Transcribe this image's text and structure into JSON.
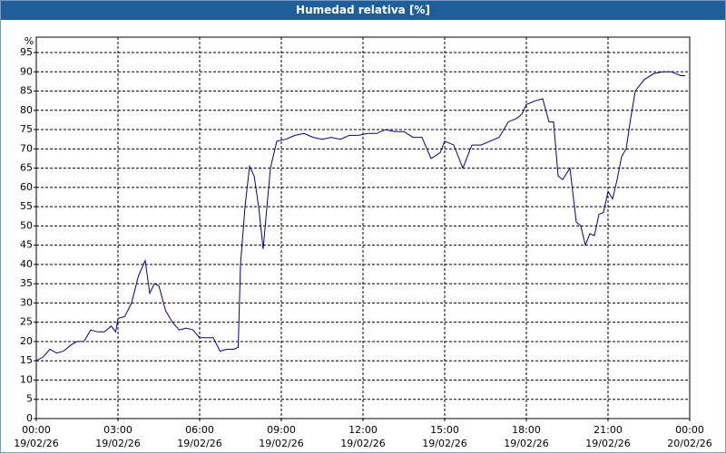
{
  "chart_data": {
    "type": "line",
    "title": "Humedad relativa [%]",
    "y_unit": "%",
    "x": [
      "19/02/26 00:00",
      "19/02/26 00:15",
      "19/02/26 00:30",
      "19/02/26 00:45",
      "19/02/26 01:00",
      "19/02/26 01:15",
      "19/02/26 01:30",
      "19/02/26 01:45",
      "19/02/26 02:00",
      "19/02/26 02:15",
      "19/02/26 02:30",
      "19/02/26 02:45",
      "19/02/26 02:55",
      "19/02/26 03:00",
      "19/02/26 03:15",
      "19/02/26 03:30",
      "19/02/26 03:45",
      "19/02/26 04:00",
      "19/02/26 04:10",
      "19/02/26 04:20",
      "19/02/26 04:30",
      "19/02/26 04:45",
      "19/02/26 05:00",
      "19/02/26 05:15",
      "19/02/26 05:30",
      "19/02/26 05:45",
      "19/02/26 06:00",
      "19/02/26 06:15",
      "19/02/26 06:30",
      "19/02/26 06:45",
      "19/02/26 07:00",
      "19/02/26 07:15",
      "19/02/26 07:25",
      "19/02/26 07:30",
      "19/02/26 07:40",
      "19/02/26 07:50",
      "19/02/26 08:00",
      "19/02/26 08:10",
      "19/02/26 08:20",
      "19/02/26 08:26",
      "19/02/26 08:36",
      "19/02/26 08:50",
      "19/02/26 09:10",
      "19/02/26 09:30",
      "19/02/26 09:50",
      "19/02/26 10:10",
      "19/02/26 10:30",
      "19/02/26 10:50",
      "19/02/26 11:10",
      "19/02/26 11:30",
      "19/02/26 11:50",
      "19/02/26 12:10",
      "19/02/26 12:30",
      "19/02/26 12:50",
      "19/02/26 13:10",
      "19/02/26 13:30",
      "19/02/26 13:50",
      "19/02/26 14:10",
      "19/02/26 14:30",
      "19/02/26 14:50",
      "19/02/26 15:00",
      "19/02/26 15:20",
      "19/02/26 15:40",
      "19/02/26 16:00",
      "19/02/26 16:20",
      "19/02/26 16:40",
      "19/02/26 17:00",
      "19/02/26 17:20",
      "19/02/26 17:40",
      "19/02/26 17:50",
      "19/02/26 18:00",
      "19/02/26 18:20",
      "19/02/26 18:36",
      "19/02/26 18:50",
      "19/02/26 19:00",
      "19/02/26 19:10",
      "19/02/26 19:20",
      "19/02/26 19:36",
      "19/02/26 19:50",
      "19/02/26 20:00",
      "19/02/26 20:10",
      "19/02/26 20:20",
      "19/02/26 20:30",
      "19/02/26 20:40",
      "19/02/26 20:50",
      "19/02/26 21:00",
      "19/02/26 21:10",
      "19/02/26 21:20",
      "19/02/26 21:30",
      "19/02/26 21:40",
      "19/02/26 21:50",
      "19/02/26 22:00",
      "19/02/26 22:20",
      "19/02/26 22:40",
      "19/02/26 23:00",
      "19/02/26 23:20",
      "19/02/26 23:40",
      "19/02/26 23:50"
    ],
    "values": [
      15,
      16,
      18,
      17,
      17.5,
      19,
      20,
      20,
      23,
      22.5,
      22.5,
      24,
      22.5,
      26,
      26.5,
      30,
      37,
      41,
      32.5,
      35,
      34.5,
      28,
      25,
      23,
      23.5,
      23,
      21,
      21,
      21,
      17.5,
      18,
      18,
      18.5,
      40,
      55,
      65.5,
      63,
      55,
      44,
      52,
      65,
      72,
      72.5,
      73.5,
      74,
      73,
      72.5,
      73,
      72.5,
      73.5,
      73.5,
      74,
      74,
      75,
      74.5,
      74.5,
      73,
      73,
      67.5,
      69,
      72,
      71,
      65,
      71,
      71,
      72,
      73,
      77,
      78,
      79,
      81.5,
      82.5,
      83,
      77,
      77,
      63,
      62,
      65,
      51,
      50,
      45,
      48,
      47.5,
      53,
      53.5,
      59,
      57,
      62,
      68,
      70,
      78,
      85,
      88,
      89.5,
      90,
      90,
      89,
      89
    ],
    "color": "#000090",
    "xlim": [
      "19/02/26 00:00",
      "20/02/26 00:00"
    ],
    "xticks": [
      {
        "value": "19/02/26 00:00",
        "label": [
          "00:00",
          "19/02/26"
        ]
      },
      {
        "value": "19/02/26 03:00",
        "label": [
          "03:00",
          "19/02/26"
        ]
      },
      {
        "value": "19/02/26 06:00",
        "label": [
          "06:00",
          "19/02/26"
        ]
      },
      {
        "value": "19/02/26 09:00",
        "label": [
          "09:00",
          "19/02/26"
        ]
      },
      {
        "value": "19/02/26 12:00",
        "label": [
          "12:00",
          "19/02/26"
        ]
      },
      {
        "value": "19/02/26 15:00",
        "label": [
          "15:00",
          "19/02/26"
        ]
      },
      {
        "value": "19/02/26 18:00",
        "label": [
          "18:00",
          "19/02/26"
        ]
      },
      {
        "value": "19/02/26 21:00",
        "label": [
          "21:00",
          "19/02/26"
        ]
      },
      {
        "value": "20/02/26 00:00",
        "label": [
          "00:00",
          "20/02/26"
        ]
      }
    ],
    "ylim": [
      0,
      99
    ],
    "yticks": [
      0,
      5,
      10,
      15,
      20,
      25,
      30,
      35,
      40,
      45,
      50,
      55,
      60,
      65,
      70,
      75,
      80,
      85,
      90,
      95
    ],
    "grid": true
  }
}
